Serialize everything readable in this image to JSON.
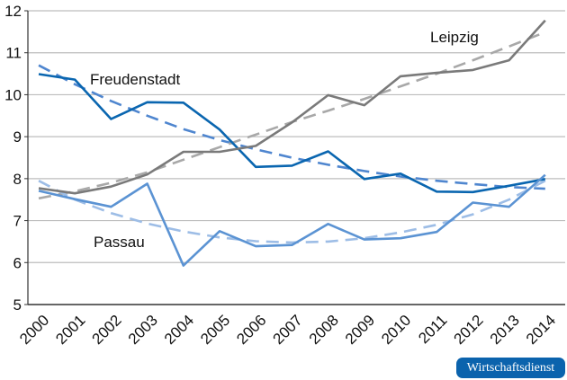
{
  "chart_data": {
    "type": "line",
    "x": [
      2000,
      2001,
      2002,
      2003,
      2004,
      2005,
      2006,
      2007,
      2008,
      2009,
      2010,
      2011,
      2012,
      2013,
      2014
    ],
    "ylim": [
      5,
      12
    ],
    "yticks": [
      5,
      6,
      7,
      8,
      9,
      10,
      11,
      12
    ],
    "grid": true,
    "series": [
      {
        "name": "Freudenstadt",
        "color": "#0a66b0",
        "style": "solid",
        "values": [
          10.49,
          10.36,
          9.42,
          9.82,
          9.81,
          9.17,
          8.28,
          8.31,
          8.65,
          7.99,
          8.12,
          7.69,
          7.68,
          7.83,
          7.99
        ]
      },
      {
        "name": "Leipzig",
        "color": "#7a7a7a",
        "style": "solid",
        "values": [
          7.77,
          7.65,
          7.81,
          8.1,
          8.64,
          8.64,
          8.78,
          9.34,
          9.99,
          9.75,
          10.44,
          10.52,
          10.59,
          10.82,
          11.77
        ]
      },
      {
        "name": "Passau",
        "color": "#5b93d3",
        "style": "solid",
        "values": [
          7.71,
          7.51,
          7.33,
          7.88,
          5.93,
          6.75,
          6.39,
          6.42,
          6.92,
          6.55,
          6.58,
          6.73,
          7.43,
          7.33,
          8.09
        ]
      },
      {
        "color": "#4f86cf",
        "style": "dashed",
        "values": [
          10.7,
          10.25,
          9.85,
          9.5,
          9.18,
          8.92,
          8.7,
          8.5,
          8.33,
          8.18,
          8.05,
          7.95,
          7.87,
          7.8,
          7.76
        ]
      },
      {
        "color": "#a8a8a8",
        "style": "dashed",
        "values": [
          7.53,
          7.7,
          7.9,
          8.15,
          8.45,
          8.75,
          9.05,
          9.35,
          9.62,
          9.9,
          10.2,
          10.5,
          10.82,
          11.15,
          11.49
        ]
      },
      {
        "color": "#9dbde6",
        "style": "dashed",
        "values": [
          7.95,
          7.5,
          7.18,
          6.93,
          6.74,
          6.6,
          6.51,
          6.48,
          6.5,
          6.58,
          6.72,
          6.9,
          7.15,
          7.5,
          7.95
        ]
      }
    ],
    "annotations": [
      "Freudenstadt",
      "Leipzig",
      "Passau"
    ]
  },
  "badge": "Wirtschaftsdienst"
}
